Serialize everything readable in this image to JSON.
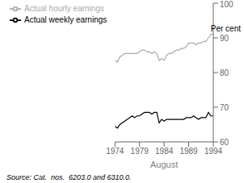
{
  "chart_data": {
    "type": "line",
    "xlabel": "August",
    "ylabel": "Per cent",
    "annotations": [
      "Source: Cat.  nos.  6203.0 and 6310.0."
    ],
    "x": [
      1974,
      1974.5,
      1975,
      1975.5,
      1976,
      1976.5,
      1977,
      1977.5,
      1978,
      1978.5,
      1979,
      1979.5,
      1980,
      1980.5,
      1981,
      1981.5,
      1982,
      1982.5,
      1983,
      1983.5,
      1984,
      1984.5,
      1985,
      1985.5,
      1986,
      1986.5,
      1987,
      1987.5,
      1988,
      1988.5,
      1989,
      1989.5,
      1990,
      1990.5,
      1991,
      1991.5,
      1992,
      1992.5,
      1993,
      1993.5,
      1994
    ],
    "series": [
      {
        "name": "Actual weekly earnings",
        "color": "#000000",
        "values": [
          64.5,
          64.0,
          65.0,
          65.5,
          66.0,
          66.5,
          67.0,
          67.5,
          67.0,
          67.5,
          67.5,
          68.0,
          68.5,
          68.5,
          68.5,
          68.0,
          68.5,
          68.5,
          65.5,
          66.5,
          66.0,
          66.5,
          66.5,
          66.5,
          66.5,
          66.5,
          66.5,
          66.5,
          66.5,
          67.0,
          67.0,
          67.0,
          67.5,
          67.0,
          66.5,
          67.0,
          67.0,
          67.0,
          68.5,
          67.5,
          67.5
        ]
      },
      {
        "name": "Actual hourly earnings",
        "color": "#aaaaaa",
        "values": [
          83.5,
          83.0,
          84.5,
          85.0,
          85.5,
          85.5,
          85.5,
          85.5,
          85.5,
          85.5,
          86.0,
          86.5,
          86.5,
          86.0,
          86.0,
          85.5,
          86.0,
          85.5,
          83.5,
          84.0,
          83.5,
          85.0,
          85.5,
          85.5,
          86.0,
          86.5,
          86.5,
          87.0,
          87.0,
          87.5,
          88.5,
          88.5,
          88.5,
          88.0,
          88.5,
          88.5,
          89.0,
          89.0,
          90.0,
          91.0,
          91.0
        ]
      }
    ],
    "xlim": [
      1974,
      1994
    ],
    "ylim": [
      60,
      100
    ],
    "xticks": [
      1974,
      1979,
      1984,
      1989,
      1994
    ],
    "yticks": [
      60,
      70,
      80,
      90,
      100
    ],
    "legend": "upper left"
  }
}
